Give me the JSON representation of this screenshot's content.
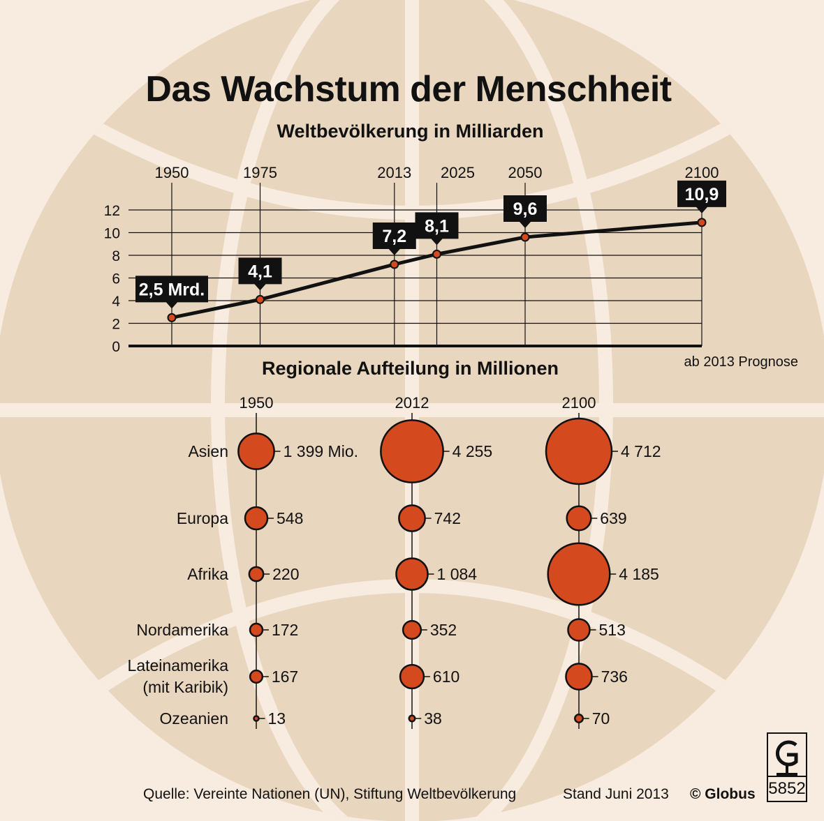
{
  "title": "Das Wachstum der Menschheit",
  "line_subtitle": "Weltbevölkerung in Milliarden",
  "bubble_subtitle": "Regionale Aufteilung in Millionen",
  "forecast_note": "ab 2013 Prognose",
  "source": "Quelle: Vereinte Nationen (UN), Stiftung Weltbevölkerung",
  "date_note": "Stand Juni 2013",
  "copyright": "© Globus",
  "logo_number": "5852",
  "colors": {
    "background": "#f7ecdf",
    "globe_fill": "#e9d6bf",
    "bubble": "#d44a1e",
    "label_box": "#111111",
    "line": "#111111"
  },
  "chart_data": [
    {
      "type": "line",
      "title": "Weltbevölkerung in Milliarden",
      "x": [
        1950,
        1975,
        2013,
        2025,
        2050,
        2100
      ],
      "y": [
        2.5,
        4.1,
        7.2,
        8.1,
        9.6,
        10.9
      ],
      "labels": [
        "2,5 Mrd.",
        "4,1",
        "7,2",
        "8,1",
        "9,6",
        "10,9"
      ],
      "yticks": [
        0,
        2,
        4,
        6,
        8,
        10,
        12
      ],
      "ylim": [
        0,
        12
      ],
      "grid": true,
      "annotation": "ab 2013 Prognose"
    },
    {
      "type": "bubble",
      "title": "Regionale Aufteilung in Millionen",
      "columns": [
        "1950",
        "2012",
        "2100"
      ],
      "rows": [
        {
          "region": "Asien",
          "values": [
            1399,
            4255,
            4712
          ],
          "labels": [
            "1 399 Mio.",
            "4 255",
            "4 712"
          ]
        },
        {
          "region": "Europa",
          "values": [
            548,
            742,
            639
          ],
          "labels": [
            "548",
            "742",
            "639"
          ]
        },
        {
          "region": "Afrika",
          "values": [
            220,
            1084,
            4185
          ],
          "labels": [
            "220",
            "1 084",
            "4 185"
          ]
        },
        {
          "region": "Nordamerika",
          "values": [
            172,
            352,
            513
          ],
          "labels": [
            "172",
            "352",
            "513"
          ]
        },
        {
          "region": "Lateinamerika\n(mit Karibik)",
          "values": [
            167,
            610,
            736
          ],
          "labels": [
            "167",
            "610",
            "736"
          ]
        },
        {
          "region": "Ozeanien",
          "values": [
            13,
            38,
            70
          ],
          "labels": [
            "13",
            "38",
            "70"
          ]
        }
      ]
    }
  ]
}
